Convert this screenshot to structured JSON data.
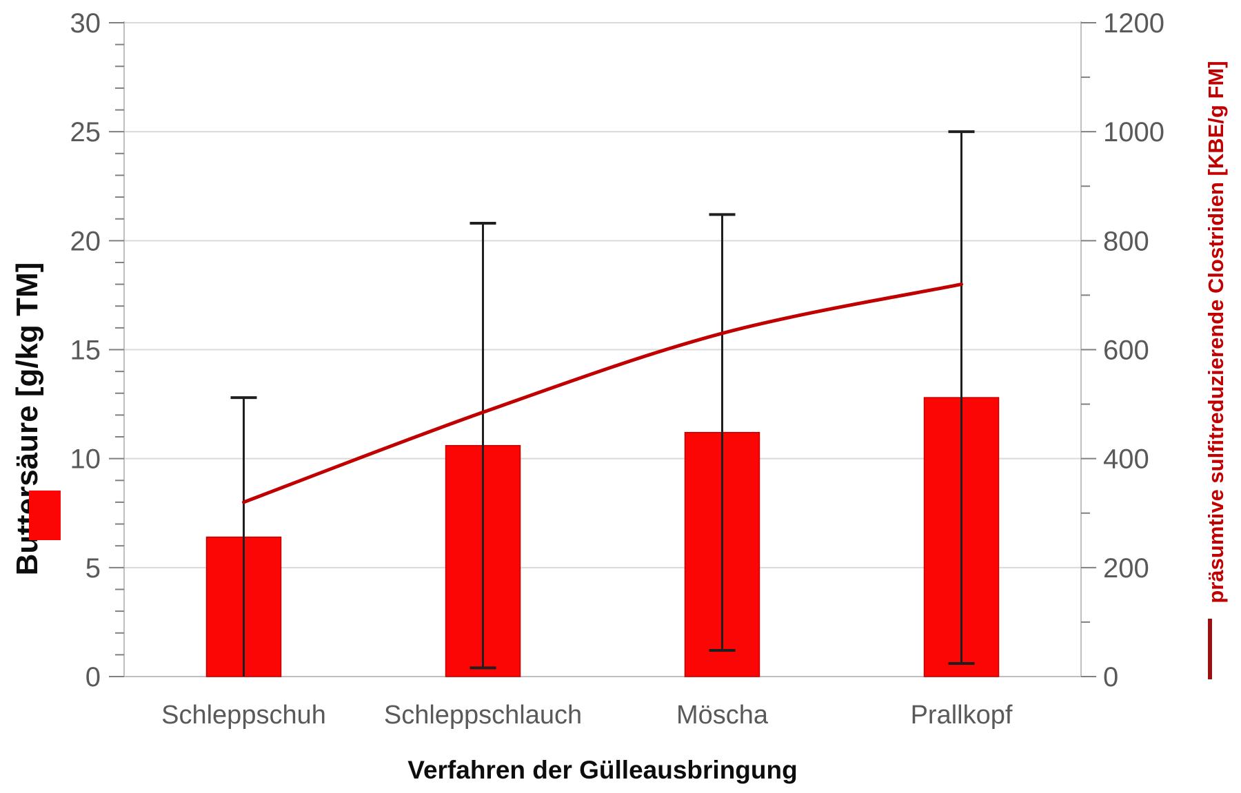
{
  "chart_data": {
    "type": "bar",
    "subtype": "combo-bar-line-dual-axis",
    "categories": [
      "Schleppschuh",
      "Schleppschlauch",
      "Möscha",
      "Prallkopf"
    ],
    "series": [
      {
        "name": "Buttersäure",
        "type": "bar",
        "axis": "left",
        "color": "#fb0505",
        "edge_color": "#c40000",
        "values": [
          6.4,
          10.6,
          11.2,
          12.8
        ],
        "error_plus_minus": [
          6.4,
          10.2,
          10.0,
          12.2
        ],
        "error_color": "#1f1f1f"
      },
      {
        "name": "präsumtive sulfitreduzierende Clostridien",
        "type": "line",
        "axis": "right",
        "color": "#c00000",
        "values": [
          320,
          485,
          630,
          720
        ]
      }
    ],
    "left_axis": {
      "label": "Buttersäure [g/kg TM]",
      "min": 0,
      "max": 30,
      "major_step": 5,
      "minor_step": 1,
      "tick_labels": [
        "0",
        "5",
        "10",
        "15",
        "20",
        "25",
        "30"
      ]
    },
    "right_axis": {
      "label": "präsumtive sulfitreduzierende Clostridien [KBE/g FM]",
      "min": 0,
      "max": 1200,
      "major_step": 200,
      "minor_step": 100,
      "tick_labels": [
        "0",
        "200",
        "400",
        "600",
        "800",
        "1000",
        "1200"
      ]
    },
    "x_axis": {
      "label": "Verfahren der Gülleausbringung"
    },
    "grid": {
      "horizontal_major": true,
      "color": "#d9d9d9"
    },
    "axis_line_color": "#bfbfbf",
    "tick_mark_color": "#7f7f7f",
    "tick_label_color": "#595959",
    "category_label_color": "#595959",
    "legend": {
      "bar_marker_color": "#fb0505",
      "line_marker_color": "#9b1111",
      "position": "left-and-right-margins"
    },
    "background": "#ffffff"
  }
}
